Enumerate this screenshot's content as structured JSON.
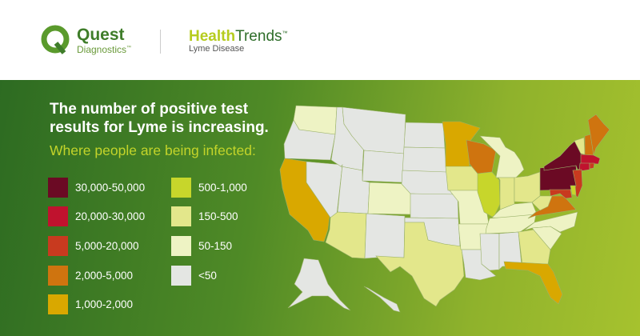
{
  "header": {
    "brand": "Quest",
    "brand_sub": "Diagnostics",
    "brand_tm": "™",
    "product_health": "Health",
    "product_trends": "Trends",
    "product_tm": "™",
    "product_sub": "Lyme Disease"
  },
  "headline": "The number of positive test results for Lyme is increasing.",
  "subheadline": "Where people are being infected:",
  "chart_data": {
    "type": "choropleth",
    "legend": [
      {
        "id": "c1",
        "label": "30,000-50,000",
        "color": "#6b0a24"
      },
      {
        "id": "c2",
        "label": "20,000-30,000",
        "color": "#c0122e"
      },
      {
        "id": "c3",
        "label": "5,000-20,000",
        "color": "#c83a1f"
      },
      {
        "id": "c4",
        "label": "2,000-5,000",
        "color": "#cf740f"
      },
      {
        "id": "c5",
        "label": "1,000-2,000",
        "color": "#d9a800"
      },
      {
        "id": "c6",
        "label": "500-1,000",
        "color": "#c7d62b"
      },
      {
        "id": "c7",
        "label": "150-500",
        "color": "#e3e78b"
      },
      {
        "id": "c8",
        "label": "50-150",
        "color": "#eef3c4"
      },
      {
        "id": "c9",
        "label": "<50",
        "color": "#e4e6e3"
      }
    ],
    "states": {
      "WA": "c8",
      "OR": "c9",
      "CA": "c5",
      "NV": "c9",
      "ID": "c9",
      "MT": "c9",
      "WY": "c9",
      "UT": "c9",
      "CO": "c8",
      "AZ": "c7",
      "NM": "c9",
      "ND": "c9",
      "SD": "c9",
      "NE": "c9",
      "KS": "c9",
      "OK": "c9",
      "TX": "c7",
      "MN": "c5",
      "IA": "c7",
      "MO": "c8",
      "AR": "c8",
      "LA": "c9",
      "WI": "c4",
      "IL": "c6",
      "MI": "c8",
      "IN": "c7",
      "OH": "c7",
      "KY": "c8",
      "TN": "c8",
      "MS": "c9",
      "AL": "c9",
      "GA": "c7",
      "FL": "c5",
      "SC": "c8",
      "NC": "c8",
      "VA": "c4",
      "WV": "c7",
      "PA": "c1",
      "NY": "c1",
      "VT": "c7",
      "NH": "c4",
      "ME": "c4",
      "MA": "c2",
      "CT": "c2",
      "RI": "c3",
      "NJ": "c3",
      "DE": "c6",
      "MD": "c3",
      "AK": "c9",
      "HI": "c9"
    }
  }
}
